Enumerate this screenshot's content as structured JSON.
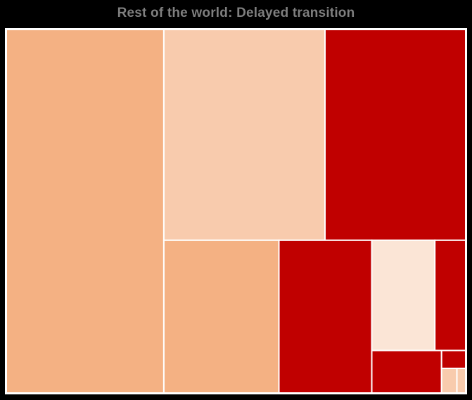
{
  "chart_data": {
    "type": "treemap",
    "title": "Rest of the world: Delayed transition",
    "colors": {
      "dark_red": "#c00000",
      "medium_orange": "#f4b183",
      "light_orange": "#f8cbad",
      "pale_peach": "#fbe5d6",
      "border": "#ffffff"
    },
    "tiles": [
      {
        "value": 1062,
        "color": "#f4b183"
      },
      {
        "value": 630,
        "color": "#f8cbad"
      },
      {
        "value": 550,
        "color": "#c00000"
      },
      {
        "value": 326,
        "color": "#f4b183"
      },
      {
        "value": 263,
        "color": "#c00000"
      },
      {
        "value": 129,
        "color": "#fbe5d6"
      },
      {
        "value": 63,
        "color": "#c00000"
      },
      {
        "value": 55,
        "color": "#c00000"
      },
      {
        "value": 8,
        "color": "#c00000"
      },
      {
        "value": 7,
        "color": "#f8cbad"
      },
      {
        "value": 4,
        "color": "#f8cbad"
      }
    ]
  }
}
